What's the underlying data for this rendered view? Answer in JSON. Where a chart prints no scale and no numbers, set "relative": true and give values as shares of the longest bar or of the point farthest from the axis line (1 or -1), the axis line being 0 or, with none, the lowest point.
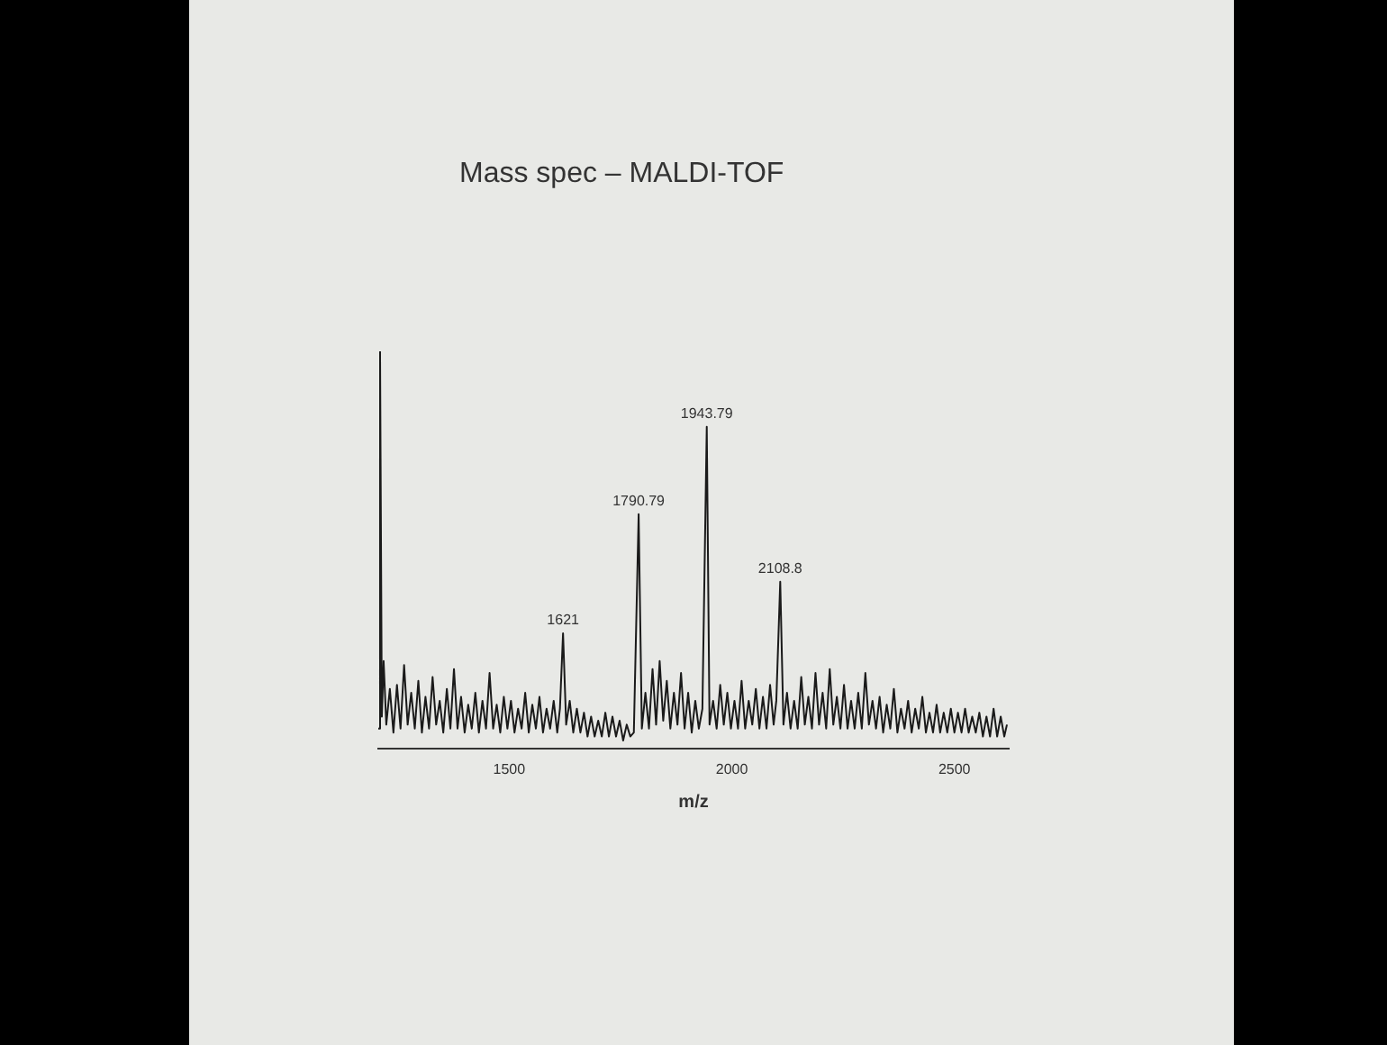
{
  "chart_data": {
    "type": "line",
    "title": "Mass spec – MALDI-TOF",
    "xlabel": "m/z",
    "relative": true,
    "color": "#1a1a1a",
    "marker": "none",
    "xlim": [
      1206,
      2622
    ],
    "xticks": [
      1500,
      2000,
      2500
    ],
    "x": [
      1206,
      1210,
      1214,
      1218,
      1224,
      1232,
      1240,
      1248,
      1256,
      1264,
      1272,
      1280,
      1288,
      1296,
      1304,
      1312,
      1320,
      1328,
      1336,
      1344,
      1352,
      1360,
      1368,
      1376,
      1384,
      1392,
      1400,
      1408,
      1416,
      1424,
      1432,
      1440,
      1448,
      1456,
      1464,
      1472,
      1480,
      1488,
      1496,
      1504,
      1512,
      1520,
      1528,
      1536,
      1544,
      1552,
      1560,
      1568,
      1576,
      1584,
      1592,
      1600,
      1608,
      1614,
      1621,
      1628,
      1636,
      1644,
      1652,
      1660,
      1668,
      1676,
      1684,
      1692,
      1700,
      1708,
      1716,
      1724,
      1732,
      1740,
      1748,
      1756,
      1764,
      1772,
      1780,
      1790.79,
      1798,
      1806,
      1814,
      1822,
      1830,
      1838,
      1846,
      1854,
      1862,
      1870,
      1878,
      1886,
      1894,
      1902,
      1910,
      1918,
      1926,
      1934,
      1943.79,
      1950,
      1958,
      1966,
      1974,
      1982,
      1990,
      1998,
      2006,
      2014,
      2022,
      2030,
      2038,
      2046,
      2054,
      2062,
      2070,
      2078,
      2086,
      2094,
      2100,
      2108.8,
      2116,
      2124,
      2132,
      2140,
      2148,
      2156,
      2164,
      2172,
      2180,
      2188,
      2196,
      2204,
      2212,
      2220,
      2228,
      2236,
      2244,
      2252,
      2260,
      2268,
      2276,
      2284,
      2292,
      2300,
      2308,
      2316,
      2324,
      2332,
      2340,
      2348,
      2356,
      2364,
      2372,
      2380,
      2388,
      2396,
      2404,
      2412,
      2420,
      2428,
      2436,
      2444,
      2452,
      2460,
      2468,
      2476,
      2484,
      2492,
      2500,
      2508,
      2516,
      2524,
      2532,
      2540,
      2548,
      2556,
      2564,
      2572,
      2580,
      2588,
      2596,
      2604,
      2612,
      2618
    ],
    "values": [
      0.05,
      1.0,
      0.08,
      0.22,
      0.06,
      0.15,
      0.04,
      0.16,
      0.05,
      0.21,
      0.06,
      0.14,
      0.05,
      0.17,
      0.04,
      0.13,
      0.05,
      0.18,
      0.06,
      0.12,
      0.04,
      0.15,
      0.05,
      0.2,
      0.05,
      0.13,
      0.04,
      0.11,
      0.05,
      0.14,
      0.04,
      0.12,
      0.05,
      0.19,
      0.05,
      0.11,
      0.04,
      0.13,
      0.05,
      0.12,
      0.04,
      0.1,
      0.05,
      0.14,
      0.04,
      0.11,
      0.05,
      0.13,
      0.04,
      0.1,
      0.05,
      0.12,
      0.04,
      0.1,
      0.29,
      0.06,
      0.12,
      0.04,
      0.1,
      0.04,
      0.09,
      0.03,
      0.08,
      0.03,
      0.07,
      0.03,
      0.09,
      0.03,
      0.08,
      0.03,
      0.07,
      0.02,
      0.06,
      0.03,
      0.04,
      0.59,
      0.05,
      0.14,
      0.05,
      0.2,
      0.06,
      0.22,
      0.07,
      0.17,
      0.05,
      0.14,
      0.06,
      0.19,
      0.05,
      0.14,
      0.04,
      0.12,
      0.05,
      0.1,
      0.81,
      0.06,
      0.12,
      0.05,
      0.16,
      0.06,
      0.14,
      0.05,
      0.12,
      0.05,
      0.17,
      0.05,
      0.12,
      0.06,
      0.15,
      0.05,
      0.13,
      0.05,
      0.16,
      0.06,
      0.12,
      0.42,
      0.06,
      0.14,
      0.05,
      0.12,
      0.05,
      0.18,
      0.06,
      0.13,
      0.05,
      0.19,
      0.06,
      0.14,
      0.05,
      0.2,
      0.06,
      0.13,
      0.05,
      0.16,
      0.05,
      0.12,
      0.05,
      0.14,
      0.05,
      0.19,
      0.06,
      0.12,
      0.05,
      0.13,
      0.04,
      0.11,
      0.05,
      0.15,
      0.04,
      0.1,
      0.05,
      0.12,
      0.04,
      0.1,
      0.05,
      0.13,
      0.04,
      0.09,
      0.04,
      0.11,
      0.04,
      0.09,
      0.04,
      0.1,
      0.04,
      0.09,
      0.04,
      0.1,
      0.04,
      0.08,
      0.04,
      0.09,
      0.03,
      0.08,
      0.03,
      0.1,
      0.03,
      0.08,
      0.03,
      0.06
    ],
    "annotations": [
      {
        "text": "1621",
        "x": 1621,
        "y": 0.29
      },
      {
        "text": "1790.79",
        "x": 1790.79,
        "y": 0.59
      },
      {
        "text": "1943.79",
        "x": 1943.79,
        "y": 0.81
      },
      {
        "text": "2108.8",
        "x": 2108.8,
        "y": 0.42
      }
    ]
  }
}
